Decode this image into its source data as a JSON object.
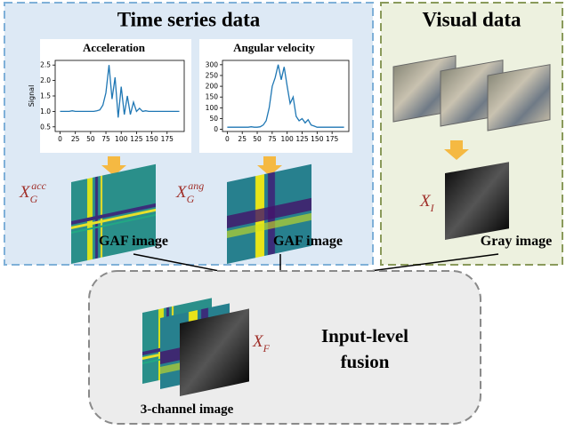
{
  "time_series": {
    "title": "Time series data",
    "charts": [
      {
        "type": "line",
        "title": "Acceleration",
        "ylabel": "Signal",
        "color": "#1f77b4",
        "x": [
          0,
          5,
          10,
          15,
          20,
          25,
          30,
          35,
          40,
          45,
          50,
          55,
          60,
          65,
          70,
          75,
          80,
          85,
          90,
          95,
          100,
          105,
          110,
          115,
          120,
          125,
          130,
          135,
          140,
          145,
          150,
          155,
          160,
          165,
          170,
          175,
          180,
          185,
          190,
          195
        ],
        "values": [
          1.0,
          1.0,
          1.0,
          1.0,
          1.02,
          1.0,
          1.0,
          1.0,
          1.0,
          1.0,
          1.0,
          1.0,
          1.02,
          1.05,
          1.2,
          1.6,
          2.5,
          1.4,
          2.1,
          0.8,
          1.8,
          0.9,
          1.5,
          0.9,
          1.3,
          1.0,
          1.1,
          1.0,
          1.02,
          1.0,
          1.0,
          1.0,
          1.0,
          1.0,
          1.0,
          1.0,
          1.0,
          1.0,
          1.0,
          1.0
        ],
        "xlim": [
          -8,
          203
        ],
        "ylim": [
          0.35,
          2.65
        ],
        "xticks": [
          0,
          25,
          50,
          75,
          100,
          125,
          150,
          175
        ],
        "yticks": [
          0.5,
          {
            "value": 1,
            "label": "1.0"
          },
          1.5,
          {
            "value": 2,
            "label": "2.0"
          },
          2.5
        ]
      },
      {
        "type": "line",
        "title": "Angular velocity",
        "color": "#1f77b4",
        "x": [
          0,
          5,
          10,
          15,
          20,
          25,
          30,
          35,
          40,
          45,
          50,
          55,
          60,
          65,
          70,
          75,
          80,
          85,
          90,
          95,
          100,
          105,
          110,
          115,
          120,
          125,
          130,
          135,
          140,
          145,
          150,
          155,
          160,
          165,
          170,
          175,
          180,
          185,
          190,
          195
        ],
        "values": [
          10,
          10,
          10,
          10,
          10,
          10,
          10,
          10,
          12,
          10,
          10,
          12,
          20,
          40,
          100,
          200,
          240,
          300,
          230,
          290,
          200,
          120,
          150,
          60,
          40,
          50,
          30,
          45,
          20,
          15,
          10,
          10,
          10,
          10,
          10,
          10,
          10,
          10,
          10,
          10
        ],
        "xlim": [
          -8,
          203
        ],
        "ylim": [
          -10,
          320
        ],
        "xticks": [
          0,
          25,
          50,
          75,
          100,
          125,
          150,
          175
        ],
        "yticks": [
          0,
          50,
          100,
          150,
          200,
          250,
          300
        ]
      }
    ],
    "gaf": [
      {
        "symbol": "X",
        "sub": "G",
        "sup": "acc",
        "caption": "GAF image"
      },
      {
        "symbol": "X",
        "sub": "G",
        "sup": "ang",
        "caption": "GAF image"
      }
    ]
  },
  "visual": {
    "title": "Visual data",
    "symbol": "X",
    "sub": "I",
    "caption": "Gray image"
  },
  "fusion": {
    "symbol": "X",
    "sub": "F",
    "caption": "3-channel image",
    "label": [
      "Input-level",
      "fusion"
    ]
  }
}
